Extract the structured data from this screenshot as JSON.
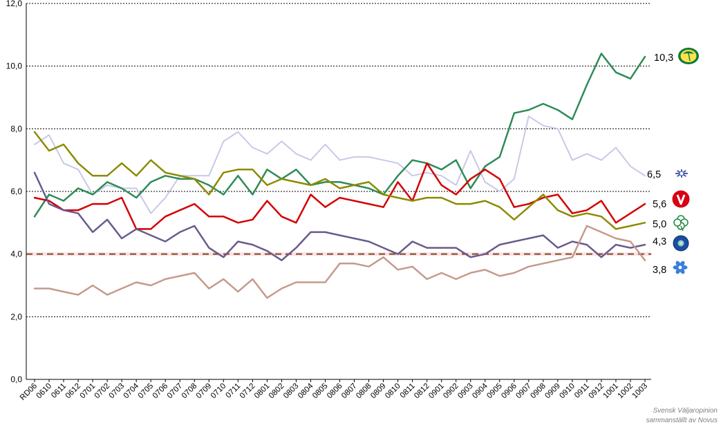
{
  "chart_data": {
    "type": "line",
    "x": [
      "RD06",
      "0610",
      "0611",
      "0612",
      "0701",
      "0702",
      "0703",
      "0704",
      "0705",
      "0706",
      "0707",
      "0708",
      "0709",
      "0710",
      "0711",
      "0712",
      "0801",
      "0802",
      "0803",
      "0804",
      "0805",
      "0806",
      "0807",
      "0808",
      "0809",
      "0810",
      "0811",
      "0812",
      "0901",
      "0902",
      "0903",
      "0904",
      "0905",
      "0906",
      "0907",
      "0908",
      "0909",
      "0910",
      "0911",
      "0912",
      "1001",
      "1002",
      "1003"
    ],
    "x_tick_labels": [
      "RD06",
      "0610",
      "0611",
      "0612",
      "0701",
      "0702",
      "0703",
      "0704",
      "0705",
      "0706",
      "0707",
      "0708",
      "0709",
      "0710",
      "0711",
      "0712",
      "0801",
      "0802",
      "0803",
      "0804",
      "0805",
      "0806",
      "0807",
      "0808",
      "0809",
      "0810",
      "0811",
      "0812",
      "0901",
      "0902",
      "0903",
      "0904",
      "0905",
      "0906",
      "0907",
      "0908",
      "0909",
      "0910",
      "0911",
      "0912",
      "1001",
      "1002",
      "1003"
    ],
    "y_tick_labels": [
      "0,0",
      "2,0",
      "4,0",
      "6,0",
      "8,0",
      "10,0",
      "12,0"
    ],
    "ylim": [
      0,
      12
    ],
    "ygrid": "dashed",
    "threshold": 4.0,
    "series": [
      {
        "color": "#c8c8e8",
        "end_label": "6,5",
        "icon": "kd-icon",
        "values": [
          7.5,
          7.8,
          6.9,
          6.7,
          5.9,
          6.2,
          6.1,
          6.1,
          5.3,
          5.8,
          6.5,
          6.5,
          6.5,
          7.6,
          7.9,
          7.4,
          7.2,
          7.6,
          7.2,
          7.0,
          7.5,
          7.0,
          7.1,
          7.1,
          7.0,
          6.9,
          6.5,
          6.6,
          6.5,
          6.2,
          7.3,
          6.3,
          6.0,
          6.4,
          8.4,
          8.1,
          8.0,
          7.0,
          7.2,
          7.0,
          7.4,
          6.8,
          6.5
        ]
      },
      {
        "color": "#2e8b57",
        "end_label": "10,3",
        "icon": "mp-icon",
        "values": [
          5.2,
          5.9,
          5.7,
          6.1,
          5.9,
          6.3,
          6.1,
          5.8,
          6.3,
          6.5,
          6.4,
          6.4,
          6.2,
          5.9,
          6.5,
          5.9,
          6.7,
          6.4,
          6.7,
          6.2,
          6.3,
          6.3,
          6.2,
          6.1,
          5.9,
          6.5,
          7.0,
          6.9,
          6.7,
          7.0,
          6.1,
          6.8,
          7.1,
          8.5,
          8.6,
          8.8,
          8.6,
          8.3,
          9.4,
          10.4,
          9.8,
          9.6,
          10.3
        ]
      },
      {
        "color": "#d40000",
        "end_label": "5,6",
        "icon": "v-icon",
        "values": [
          5.8,
          5.7,
          5.4,
          5.4,
          5.6,
          5.6,
          5.8,
          4.8,
          4.8,
          5.2,
          5.4,
          5.6,
          5.2,
          5.2,
          5.0,
          5.1,
          5.7,
          5.2,
          5.0,
          5.9,
          5.5,
          5.8,
          5.7,
          5.6,
          5.5,
          6.3,
          5.7,
          6.9,
          6.2,
          5.9,
          6.4,
          6.7,
          6.4,
          5.5,
          5.6,
          5.8,
          5.9,
          5.3,
          5.4,
          5.7,
          5.0,
          5.3,
          5.6
        ]
      },
      {
        "color": "#8b8b00",
        "end_label": "5,0",
        "icon": "c-icon",
        "values": [
          7.9,
          7.3,
          7.5,
          6.9,
          6.5,
          6.5,
          6.9,
          6.5,
          7.0,
          6.6,
          6.5,
          6.4,
          5.9,
          6.6,
          6.7,
          6.7,
          6.2,
          6.4,
          6.3,
          6.2,
          6.4,
          6.1,
          6.2,
          6.3,
          5.9,
          5.8,
          5.7,
          5.8,
          5.8,
          5.6,
          5.6,
          5.7,
          5.5,
          5.1,
          5.5,
          5.9,
          5.4,
          5.2,
          5.3,
          5.2,
          4.8,
          4.9,
          5.0
        ]
      },
      {
        "color": "#6a5a8c",
        "end_label": "4,3",
        "icon": "fp-icon",
        "values": [
          6.6,
          5.6,
          5.4,
          5.3,
          4.7,
          5.1,
          4.5,
          4.8,
          4.6,
          4.4,
          4.7,
          4.9,
          4.2,
          3.9,
          4.4,
          4.3,
          4.1,
          3.8,
          4.2,
          4.7,
          4.7,
          4.6,
          4.5,
          4.4,
          4.2,
          4.0,
          4.4,
          4.2,
          4.2,
          4.2,
          3.9,
          4.0,
          4.3,
          4.4,
          4.5,
          4.6,
          4.2,
          4.4,
          4.3,
          3.9,
          4.3,
          4.2,
          4.3
        ]
      },
      {
        "color": "#c49a8c",
        "end_label": "3,8",
        "icon": "s-icon",
        "values": [
          2.9,
          2.9,
          2.8,
          2.7,
          3.0,
          2.7,
          2.9,
          3.1,
          3.0,
          3.2,
          3.3,
          3.4,
          2.9,
          3.2,
          2.8,
          3.2,
          2.6,
          2.9,
          3.1,
          3.1,
          3.1,
          3.7,
          3.7,
          3.6,
          3.9,
          3.5,
          3.6,
          3.2,
          3.4,
          3.2,
          3.4,
          3.5,
          3.3,
          3.4,
          3.6,
          3.7,
          3.8,
          3.9,
          4.9,
          4.7,
          4.5,
          4.4,
          3.8
        ]
      }
    ],
    "credit_lines": [
      "Svensk Väljaropinion",
      "sammanställt av Novus"
    ]
  }
}
